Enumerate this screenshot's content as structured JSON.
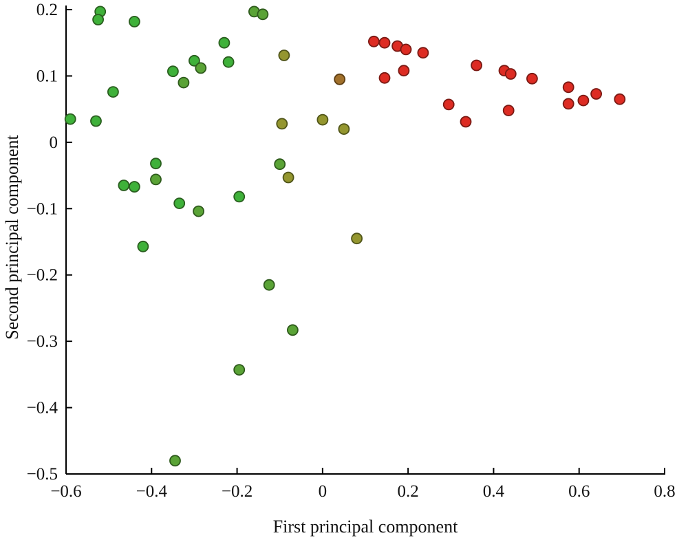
{
  "chart_data": {
    "type": "scatter",
    "title": "",
    "xlabel": "First principal component",
    "ylabel": "Second principal component",
    "xlim": [
      -0.6,
      0.8
    ],
    "ylim": [
      -0.5,
      0.2
    ],
    "grid": false,
    "legend": "none",
    "xticks": [
      -0.6,
      -0.4,
      -0.2,
      0,
      0.2,
      0.4,
      0.6,
      0.8
    ],
    "xtick_labels": [
      "−0.6",
      "−0.4",
      "−0.2",
      "0",
      "0.2",
      "0.4",
      "0.6",
      "0.8"
    ],
    "yticks": [
      -0.5,
      -0.4,
      -0.3,
      -0.2,
      -0.1,
      0,
      0.1,
      0.2
    ],
    "ytick_labels": [
      "−0.5",
      "−0.4",
      "−0.3",
      "−0.2",
      "−0.1",
      "0",
      "0.1",
      "0.2"
    ],
    "palette": {
      "g": {
        "name": "green",
        "fill": "#3fb13a",
        "stroke": "#2a5e1f"
      },
      "d": {
        "name": "dark-green",
        "fill": "#5aa336",
        "stroke": "#2e5a1c"
      },
      "o": {
        "name": "olive",
        "fill": "#94962f",
        "stroke": "#4f5418"
      },
      "b": {
        "name": "brown",
        "fill": "#a1702b",
        "stroke": "#5c3d12"
      },
      "r": {
        "name": "red",
        "fill": "#dd2c23",
        "stroke": "#7a1a14"
      }
    },
    "points": [
      [
        -0.52,
        0.197,
        "g"
      ],
      [
        -0.525,
        0.185,
        "g"
      ],
      [
        -0.44,
        0.182,
        "g"
      ],
      [
        -0.16,
        0.197,
        "d"
      ],
      [
        -0.14,
        0.193,
        "d"
      ],
      [
        -0.23,
        0.15,
        "g"
      ],
      [
        -0.3,
        0.123,
        "g"
      ],
      [
        -0.35,
        0.107,
        "g"
      ],
      [
        -0.285,
        0.112,
        "d"
      ],
      [
        -0.22,
        0.121,
        "g"
      ],
      [
        -0.325,
        0.09,
        "d"
      ],
      [
        -0.49,
        0.076,
        "g"
      ],
      [
        -0.59,
        0.035,
        "g"
      ],
      [
        -0.53,
        0.032,
        "g"
      ],
      [
        -0.09,
        0.131,
        "o"
      ],
      [
        -0.095,
        0.028,
        "o"
      ],
      [
        0.04,
        0.095,
        "b"
      ],
      [
        0.0,
        0.034,
        "o"
      ],
      [
        0.05,
        0.02,
        "o"
      ],
      [
        0.12,
        0.152,
        "r"
      ],
      [
        0.145,
        0.15,
        "r"
      ],
      [
        0.175,
        0.145,
        "r"
      ],
      [
        0.195,
        0.14,
        "r"
      ],
      [
        0.235,
        0.135,
        "r"
      ],
      [
        0.145,
        0.097,
        "r"
      ],
      [
        0.19,
        0.108,
        "r"
      ],
      [
        0.295,
        0.057,
        "r"
      ],
      [
        0.335,
        0.031,
        "r"
      ],
      [
        0.36,
        0.116,
        "r"
      ],
      [
        0.425,
        0.108,
        "r"
      ],
      [
        0.44,
        0.103,
        "r"
      ],
      [
        0.435,
        0.048,
        "r"
      ],
      [
        0.49,
        0.096,
        "r"
      ],
      [
        0.575,
        0.083,
        "r"
      ],
      [
        0.575,
        0.058,
        "r"
      ],
      [
        0.61,
        0.063,
        "r"
      ],
      [
        0.64,
        0.073,
        "r"
      ],
      [
        0.695,
        0.065,
        "r"
      ],
      [
        -0.465,
        -0.065,
        "g"
      ],
      [
        -0.44,
        -0.067,
        "g"
      ],
      [
        -0.39,
        -0.032,
        "g"
      ],
      [
        -0.39,
        -0.056,
        "d"
      ],
      [
        -0.335,
        -0.092,
        "g"
      ],
      [
        -0.29,
        -0.104,
        "d"
      ],
      [
        -0.195,
        -0.082,
        "g"
      ],
      [
        -0.1,
        -0.033,
        "d"
      ],
      [
        -0.08,
        -0.053,
        "o"
      ],
      [
        0.08,
        -0.145,
        "o"
      ],
      [
        -0.42,
        -0.157,
        "g"
      ],
      [
        -0.125,
        -0.215,
        "d"
      ],
      [
        -0.07,
        -0.283,
        "d"
      ],
      [
        -0.195,
        -0.343,
        "d"
      ],
      [
        -0.345,
        -0.48,
        "d"
      ]
    ],
    "marker": {
      "radius": 7.5,
      "stroke_width": 1.8
    },
    "axis_color": "#000000"
  }
}
